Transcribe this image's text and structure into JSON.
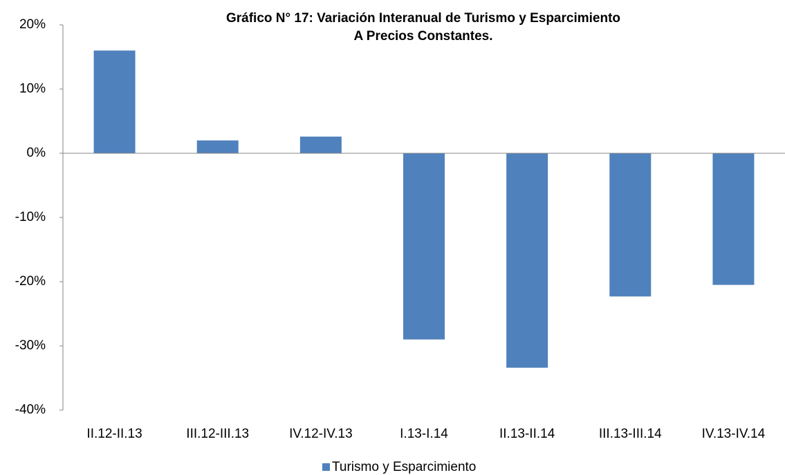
{
  "chart_data": {
    "type": "bar",
    "title": "Gráfico N° 17: Variación Interanual de Turismo y Esparcimiento",
    "subtitle": "A Precios Constantes.",
    "categories": [
      "II.12-II.13",
      "III.12-III.13",
      "IV.12-IV.13",
      "I.13-I.14",
      "II.13-II.14",
      "III.13-III.14",
      "IV.13-IV.14"
    ],
    "series": [
      {
        "name": "Turismo y Esparcimiento",
        "color": "#4f81bd",
        "values": [
          16,
          2,
          2.6,
          -29,
          -33.4,
          -22.3,
          -20.5
        ]
      }
    ],
    "ylim": [
      -40,
      20
    ],
    "yticks": [
      {
        "value": -40,
        "label": "-40%"
      },
      {
        "value": -30,
        "label": "-30%"
      },
      {
        "value": -20,
        "label": "-20%"
      },
      {
        "value": -10,
        "label": "-10%"
      },
      {
        "value": 0,
        "label": "0%"
      },
      {
        "value": 10,
        "label": "10%"
      },
      {
        "value": 20,
        "label": "20%"
      }
    ],
    "grid": false,
    "legend": "bottom"
  }
}
